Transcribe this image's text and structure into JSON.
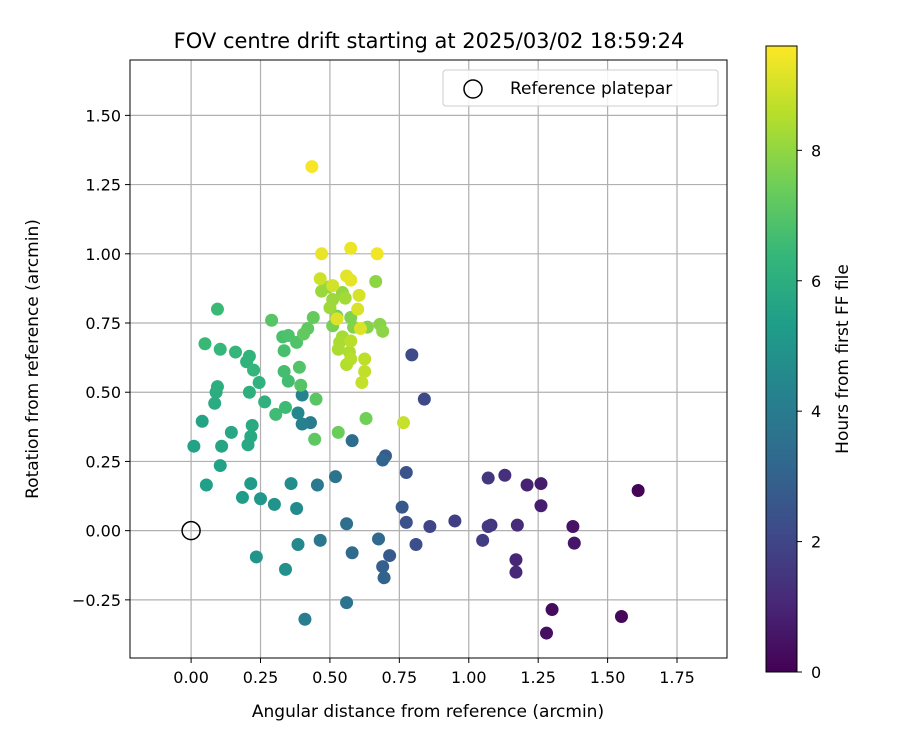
{
  "chart_data": {
    "type": "scatter",
    "title": "FOV centre drift starting at 2025/03/02 18:59:24",
    "xlabel": "Angular distance from reference (arcmin)",
    "ylabel": "Rotation from reference (arcmin)",
    "xlim": [
      -0.22,
      1.93
    ],
    "ylim": [
      -0.46,
      1.7
    ],
    "xticks": [
      0.0,
      0.25,
      0.5,
      0.75,
      1.0,
      1.25,
      1.5,
      1.75
    ],
    "xtick_labels": [
      "0.00",
      "0.25",
      "0.50",
      "0.75",
      "1.00",
      "1.25",
      "1.50",
      "1.75"
    ],
    "yticks": [
      -0.25,
      0.0,
      0.25,
      0.5,
      0.75,
      1.0,
      1.25,
      1.5
    ],
    "ytick_labels": [
      "−0.25",
      "0.00",
      "0.25",
      "0.50",
      "0.75",
      "1.00",
      "1.25",
      "1.50"
    ],
    "grid": true,
    "legend": {
      "position": "top-right",
      "entries": [
        {
          "label": "Reference platepar",
          "marker": "open-circle"
        }
      ]
    },
    "reference_point": {
      "x": 0.0,
      "y": 0.0
    },
    "colorbar": {
      "label": "Hours from first FF file",
      "colormap": "viridis",
      "range": [
        0,
        9.6
      ],
      "ticks": [
        0,
        2,
        4,
        6,
        8
      ],
      "tick_labels": [
        "0",
        "2",
        "4",
        "6",
        "8"
      ]
    },
    "points": [
      {
        "x": 1.61,
        "y": 0.145,
        "c": 0.1
      },
      {
        "x": 1.55,
        "y": -0.31,
        "c": 0.2
      },
      {
        "x": 1.3,
        "y": -0.285,
        "c": 0.3
      },
      {
        "x": 1.28,
        "y": -0.37,
        "c": 0.4
      },
      {
        "x": 1.375,
        "y": 0.015,
        "c": 0.5
      },
      {
        "x": 1.38,
        "y": -0.045,
        "c": 0.6
      },
      {
        "x": 1.26,
        "y": 0.17,
        "c": 0.7
      },
      {
        "x": 1.26,
        "y": 0.09,
        "c": 0.8
      },
      {
        "x": 1.21,
        "y": 0.165,
        "c": 0.9
      },
      {
        "x": 1.17,
        "y": -0.105,
        "c": 1.0
      },
      {
        "x": 1.17,
        "y": -0.15,
        "c": 1.1
      },
      {
        "x": 1.175,
        "y": 0.02,
        "c": 1.2
      },
      {
        "x": 1.13,
        "y": 0.2,
        "c": 1.3
      },
      {
        "x": 1.08,
        "y": 0.02,
        "c": 1.4
      },
      {
        "x": 1.07,
        "y": 0.19,
        "c": 1.5
      },
      {
        "x": 1.07,
        "y": 0.015,
        "c": 1.6
      },
      {
        "x": 1.05,
        "y": -0.035,
        "c": 1.7
      },
      {
        "x": 0.95,
        "y": 0.035,
        "c": 1.8
      },
      {
        "x": 0.86,
        "y": 0.015,
        "c": 2.0
      },
      {
        "x": 0.84,
        "y": 0.475,
        "c": 2.1
      },
      {
        "x": 0.795,
        "y": 0.635,
        "c": 2.2
      },
      {
        "x": 0.81,
        "y": -0.05,
        "c": 2.3
      },
      {
        "x": 0.775,
        "y": 0.03,
        "c": 2.4
      },
      {
        "x": 0.775,
        "y": 0.21,
        "c": 2.5
      },
      {
        "x": 0.76,
        "y": 0.085,
        "c": 2.6
      },
      {
        "x": 0.715,
        "y": -0.09,
        "c": 2.7
      },
      {
        "x": 0.7,
        "y": 0.27,
        "c": 2.8
      },
      {
        "x": 0.69,
        "y": -0.13,
        "c": 2.9
      },
      {
        "x": 0.695,
        "y": -0.17,
        "c": 3.0
      },
      {
        "x": 0.69,
        "y": 0.255,
        "c": 3.1
      },
      {
        "x": 0.675,
        "y": -0.03,
        "c": 3.2
      },
      {
        "x": 0.58,
        "y": -0.08,
        "c": 3.3
      },
      {
        "x": 0.58,
        "y": 0.325,
        "c": 3.4
      },
      {
        "x": 0.56,
        "y": 0.025,
        "c": 3.5
      },
      {
        "x": 0.56,
        "y": -0.26,
        "c": 3.6
      },
      {
        "x": 0.52,
        "y": 0.195,
        "c": 3.7
      },
      {
        "x": 0.465,
        "y": -0.035,
        "c": 3.8
      },
      {
        "x": 0.455,
        "y": 0.165,
        "c": 3.9
      },
      {
        "x": 0.43,
        "y": 0.39,
        "c": 4.0
      },
      {
        "x": 0.41,
        "y": -0.32,
        "c": 4.1
      },
      {
        "x": 0.4,
        "y": 0.385,
        "c": 4.2
      },
      {
        "x": 0.4,
        "y": 0.49,
        "c": 4.3
      },
      {
        "x": 0.385,
        "y": 0.425,
        "c": 4.4
      },
      {
        "x": 0.385,
        "y": -0.05,
        "c": 4.5
      },
      {
        "x": 0.38,
        "y": 0.08,
        "c": 4.6
      },
      {
        "x": 0.36,
        "y": 0.17,
        "c": 4.7
      },
      {
        "x": 0.34,
        "y": -0.14,
        "c": 4.8
      },
      {
        "x": 0.3,
        "y": 0.095,
        "c": 4.9
      },
      {
        "x": 0.235,
        "y": -0.095,
        "c": 5.0
      },
      {
        "x": 0.25,
        "y": 0.115,
        "c": 5.1
      },
      {
        "x": 0.215,
        "y": 0.17,
        "c": 5.2
      },
      {
        "x": 0.185,
        "y": 0.12,
        "c": 5.3
      },
      {
        "x": 0.055,
        "y": 0.165,
        "c": 5.4
      },
      {
        "x": 0.105,
        "y": 0.235,
        "c": 5.5
      },
      {
        "x": 0.01,
        "y": 0.305,
        "c": 5.55
      },
      {
        "x": 0.04,
        "y": 0.395,
        "c": 5.6
      },
      {
        "x": 0.11,
        "y": 0.305,
        "c": 5.65
      },
      {
        "x": 0.145,
        "y": 0.355,
        "c": 5.7
      },
      {
        "x": 0.205,
        "y": 0.31,
        "c": 5.75
      },
      {
        "x": 0.215,
        "y": 0.34,
        "c": 5.8
      },
      {
        "x": 0.22,
        "y": 0.38,
        "c": 5.85
      },
      {
        "x": 0.085,
        "y": 0.46,
        "c": 5.9
      },
      {
        "x": 0.09,
        "y": 0.5,
        "c": 5.95
      },
      {
        "x": 0.095,
        "y": 0.52,
        "c": 6.0
      },
      {
        "x": 0.21,
        "y": 0.5,
        "c": 6.05
      },
      {
        "x": 0.265,
        "y": 0.465,
        "c": 6.1
      },
      {
        "x": 0.245,
        "y": 0.535,
        "c": 6.15
      },
      {
        "x": 0.2,
        "y": 0.61,
        "c": 6.2
      },
      {
        "x": 0.21,
        "y": 0.63,
        "c": 6.25
      },
      {
        "x": 0.225,
        "y": 0.58,
        "c": 6.3
      },
      {
        "x": 0.16,
        "y": 0.645,
        "c": 6.35
      },
      {
        "x": 0.105,
        "y": 0.655,
        "c": 6.4
      },
      {
        "x": 0.05,
        "y": 0.675,
        "c": 6.45
      },
      {
        "x": 0.095,
        "y": 0.8,
        "c": 6.5
      },
      {
        "x": 0.34,
        "y": 0.445,
        "c": 6.55
      },
      {
        "x": 0.305,
        "y": 0.42,
        "c": 6.6
      },
      {
        "x": 0.35,
        "y": 0.54,
        "c": 6.65
      },
      {
        "x": 0.335,
        "y": 0.575,
        "c": 6.7
      },
      {
        "x": 0.335,
        "y": 0.65,
        "c": 6.75
      },
      {
        "x": 0.33,
        "y": 0.7,
        "c": 6.8
      },
      {
        "x": 0.35,
        "y": 0.705,
        "c": 6.85
      },
      {
        "x": 0.38,
        "y": 0.68,
        "c": 6.9
      },
      {
        "x": 0.39,
        "y": 0.59,
        "c": 6.95
      },
      {
        "x": 0.395,
        "y": 0.525,
        "c": 7.0
      },
      {
        "x": 0.29,
        "y": 0.76,
        "c": 7.05
      },
      {
        "x": 0.45,
        "y": 0.475,
        "c": 7.1
      },
      {
        "x": 0.445,
        "y": 0.33,
        "c": 7.15
      },
      {
        "x": 0.42,
        "y": 0.73,
        "c": 7.2
      },
      {
        "x": 0.405,
        "y": 0.71,
        "c": 7.25
      },
      {
        "x": 0.44,
        "y": 0.77,
        "c": 7.3
      },
      {
        "x": 0.53,
        "y": 0.355,
        "c": 7.4
      },
      {
        "x": 0.63,
        "y": 0.405,
        "c": 7.5
      },
      {
        "x": 0.51,
        "y": 0.74,
        "c": 7.6
      },
      {
        "x": 0.525,
        "y": 0.775,
        "c": 7.65
      },
      {
        "x": 0.575,
        "y": 0.77,
        "c": 7.7
      },
      {
        "x": 0.585,
        "y": 0.735,
        "c": 7.75
      },
      {
        "x": 0.635,
        "y": 0.735,
        "c": 7.8
      },
      {
        "x": 0.68,
        "y": 0.745,
        "c": 7.85
      },
      {
        "x": 0.69,
        "y": 0.72,
        "c": 7.9
      },
      {
        "x": 0.665,
        "y": 0.9,
        "c": 7.95
      },
      {
        "x": 0.545,
        "y": 0.86,
        "c": 8.0
      },
      {
        "x": 0.495,
        "y": 0.88,
        "c": 8.05
      },
      {
        "x": 0.47,
        "y": 0.865,
        "c": 8.1
      },
      {
        "x": 0.51,
        "y": 0.835,
        "c": 8.15
      },
      {
        "x": 0.5,
        "y": 0.805,
        "c": 8.2
      },
      {
        "x": 0.555,
        "y": 0.84,
        "c": 8.25
      },
      {
        "x": 0.545,
        "y": 0.7,
        "c": 8.3
      },
      {
        "x": 0.535,
        "y": 0.68,
        "c": 8.35
      },
      {
        "x": 0.53,
        "y": 0.655,
        "c": 8.4
      },
      {
        "x": 0.57,
        "y": 0.645,
        "c": 8.45
      },
      {
        "x": 0.56,
        "y": 0.6,
        "c": 8.5
      },
      {
        "x": 0.575,
        "y": 0.62,
        "c": 8.55
      },
      {
        "x": 0.575,
        "y": 0.685,
        "c": 8.6
      },
      {
        "x": 0.625,
        "y": 0.62,
        "c": 8.65
      },
      {
        "x": 0.625,
        "y": 0.575,
        "c": 8.7
      },
      {
        "x": 0.615,
        "y": 0.535,
        "c": 8.75
      },
      {
        "x": 0.765,
        "y": 0.39,
        "c": 8.8
      },
      {
        "x": 0.465,
        "y": 0.91,
        "c": 8.9
      },
      {
        "x": 0.51,
        "y": 0.885,
        "c": 8.95
      },
      {
        "x": 0.605,
        "y": 0.85,
        "c": 9.0
      },
      {
        "x": 0.6,
        "y": 0.8,
        "c": 9.05
      },
      {
        "x": 0.61,
        "y": 0.73,
        "c": 9.1
      },
      {
        "x": 0.525,
        "y": 0.765,
        "c": 9.15
      },
      {
        "x": 0.56,
        "y": 0.92,
        "c": 9.2
      },
      {
        "x": 0.575,
        "y": 0.905,
        "c": 9.25
      },
      {
        "x": 0.47,
        "y": 1.0,
        "c": 9.3
      },
      {
        "x": 0.575,
        "y": 1.02,
        "c": 9.35
      },
      {
        "x": 0.67,
        "y": 1.0,
        "c": 9.4
      },
      {
        "x": 0.435,
        "y": 1.315,
        "c": 9.5
      }
    ]
  }
}
